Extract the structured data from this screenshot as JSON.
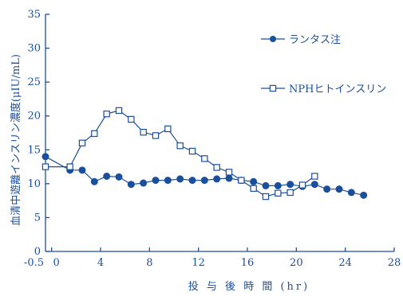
{
  "chart_data": {
    "type": "line",
    "xlabel": "投 与 後 時 間 (hr)",
    "ylabel": "血清中遊離インスリン濃度(μIU/mL)",
    "xlim": [
      -0.5,
      28
    ],
    "ylim": [
      0,
      35
    ],
    "x_ticks": [
      {
        "value": -0.5,
        "label": "-0.5"
      },
      {
        "value": 0,
        "label": "0"
      },
      {
        "value": 4,
        "label": "4"
      },
      {
        "value": 8,
        "label": "8"
      },
      {
        "value": 12,
        "label": "12"
      },
      {
        "value": 16,
        "label": "16"
      },
      {
        "value": 20,
        "label": "20"
      },
      {
        "value": 24,
        "label": "24"
      },
      {
        "value": 28,
        "label": "28"
      }
    ],
    "y_ticks": [
      0,
      5,
      10,
      15,
      20,
      25,
      30,
      35
    ],
    "grid": false,
    "legend_position": "right",
    "series": [
      {
        "name": "ランタス注",
        "marker": "filled-circle",
        "x": [
          -0.5,
          1.5,
          2.5,
          3.5,
          4.5,
          5.5,
          6.5,
          7.5,
          8.5,
          9.5,
          10.5,
          11.5,
          12.5,
          13.5,
          14.5,
          15.5,
          16.5,
          17.5,
          18.5,
          19.5,
          20.5,
          21.5,
          22.5,
          23.5,
          24.5,
          25.5
        ],
        "y": [
          14,
          12,
          12,
          10.3,
          11.1,
          11,
          9.9,
          10.1,
          10.5,
          10.5,
          10.7,
          10.5,
          10.5,
          10.7,
          10.8,
          10.5,
          10.3,
          9.7,
          9.7,
          9.9,
          9.6,
          9.9,
          9.2,
          9.2,
          8.7,
          8.3
        ]
      },
      {
        "name": "NPHヒトインスリン",
        "marker": "open-square",
        "x": [
          -0.5,
          1.5,
          2.5,
          3.5,
          4.5,
          5.5,
          6.5,
          7.5,
          8.5,
          9.5,
          10.5,
          11.5,
          12.5,
          13.5,
          14.5,
          15.5,
          16.5,
          17.5,
          18.5,
          19.5,
          20.5,
          21.5
        ],
        "y": [
          12.5,
          12.5,
          16,
          17.4,
          20.3,
          20.8,
          19.5,
          17.6,
          17.1,
          18.1,
          15.6,
          14.8,
          13.7,
          12.4,
          11.7,
          10.5,
          9.3,
          8.1,
          8.6,
          8.7,
          9.8,
          11.1
        ]
      }
    ]
  },
  "colors": {
    "axis": "#1a4f9c",
    "series": "#1a4f9c",
    "background": "#ffffff"
  }
}
